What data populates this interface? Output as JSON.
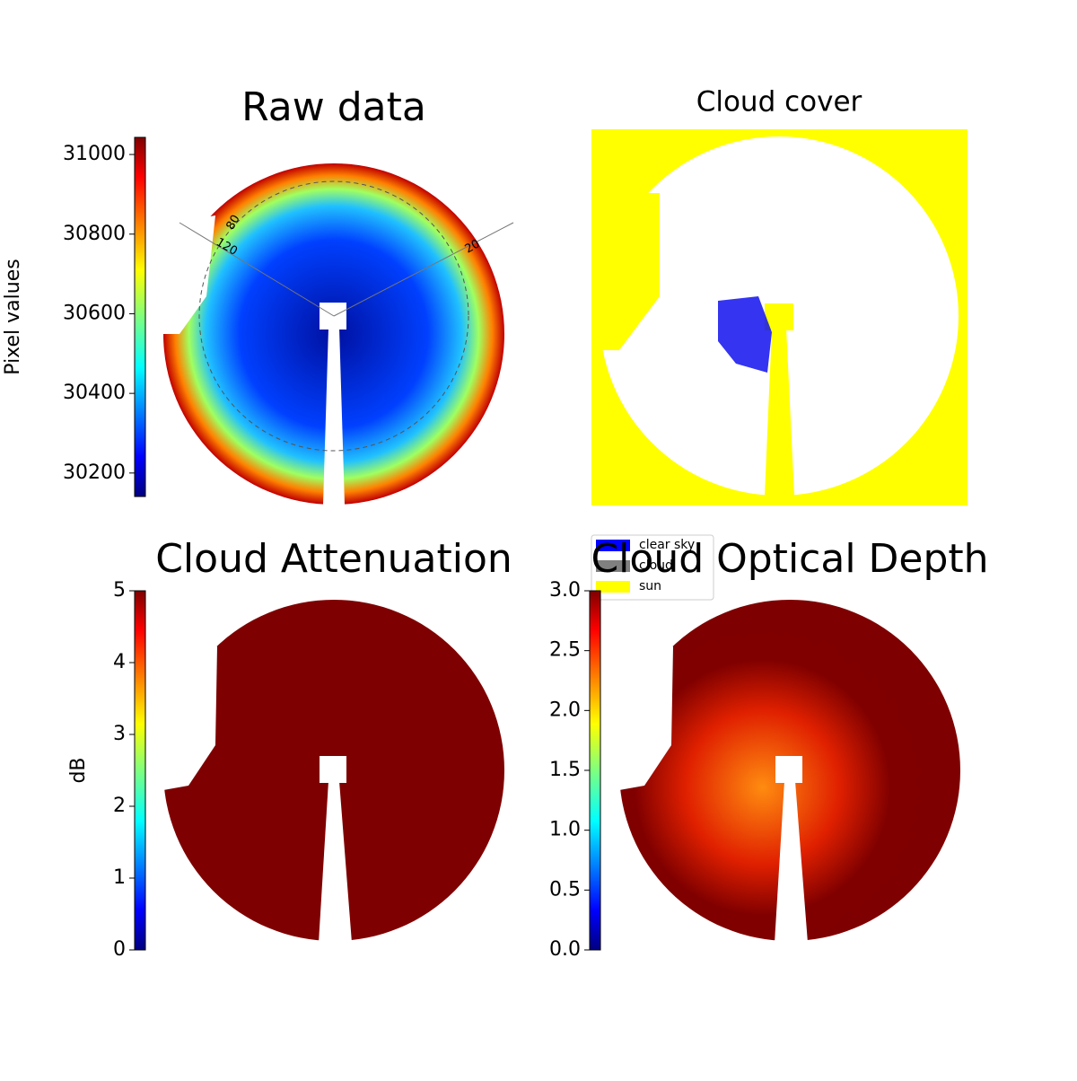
{
  "panels": [
    {
      "title": "Raw data",
      "colorbar": {
        "label": "Pixel values",
        "lim": [
          30141,
          31043
        ],
        "ticks": [
          30200,
          30400,
          30600,
          30800,
          31000
        ]
      },
      "annotations": [
        "120",
        "80",
        "20"
      ]
    },
    {
      "title": "Cloud cover",
      "legend": [
        {
          "name": "clear sky",
          "color": "#0000ff"
        },
        {
          "name": "cloud",
          "color": "#808080"
        },
        {
          "name": "sun",
          "color": "#ffff00"
        }
      ]
    },
    {
      "title": "Cloud Attenuation",
      "colorbar": {
        "label": "dB",
        "lim": [
          0,
          5
        ],
        "ticks": [
          0,
          1,
          2,
          3,
          4,
          5
        ]
      }
    },
    {
      "title": "Cloud Optical Depth",
      "colorbar": {
        "lim": [
          0,
          3
        ],
        "ticks": [
          {
            "value": 0,
            "label": "0.0"
          },
          {
            "value": 0.5,
            "label": "0.5"
          },
          {
            "value": 1,
            "label": "1.0"
          },
          {
            "value": 1.5,
            "label": "1.5"
          },
          {
            "value": 2,
            "label": "2.0"
          },
          {
            "value": 2.5,
            "label": "2.5"
          },
          {
            "value": 3,
            "label": "3.0"
          }
        ]
      }
    }
  ]
}
